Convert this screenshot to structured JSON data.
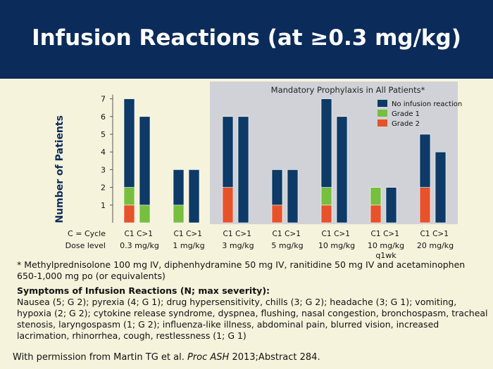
{
  "slide": {
    "title": "Infusion Reactions (at ≥0.3 mg/kg)",
    "footnote": "* Methylprednisolone 100 mg IV, diphenhydramine 50 mg IV, ranitidine 50 mg IV and acetaminophen 650-1,000 mg po (or equivalents)",
    "symptoms_title": "Symptoms of Infusion Reactions (N; max severity):",
    "symptoms_text": "Nausea (5; G 2); pyrexia (4; G 1); drug hypersensitivity, chills (3; G 2); headache (3; G 1); vomiting, hypoxia (2; G 2); cytokine release syndrome, dyspnea, flushing, nasal congestion, bronchospasm, tracheal stenosis, laryngospasm (1; G 2); influenza-like illness, abdominal pain, blurred vision, increased lacrimation, rhinorrhea, cough, restlessness (1; G 1)",
    "credit_prefix": "With permission from Martin TG et al. ",
    "credit_journal": "Proc ASH",
    "credit_suffix": " 2013;Abstract 284."
  },
  "chart_data": {
    "type": "bar",
    "stacked": true,
    "ylabel": "Number of Patients",
    "ylim": [
      0,
      7
    ],
    "yticks": [
      1,
      2,
      3,
      4,
      5,
      6,
      7
    ],
    "shaded_region_label": "Mandatory Prophylaxis in All Patients*",
    "row_labels": {
      "cycle": "C = Cycle",
      "dose": "Dose level"
    },
    "groups": [
      {
        "dose": "0.3 mg/kg",
        "cycles": [
          "C1",
          "C>1"
        ],
        "shaded": false
      },
      {
        "dose": "1 mg/kg",
        "cycles": [
          "C1",
          "C>1"
        ],
        "shaded": false
      },
      {
        "dose": "3 mg/kg",
        "cycles": [
          "C1",
          "C>1"
        ],
        "shaded": true
      },
      {
        "dose": "5 mg/kg",
        "cycles": [
          "C1",
          "C>1"
        ],
        "shaded": true
      },
      {
        "dose": "10 mg/kg",
        "cycles": [
          "C1",
          "C>1"
        ],
        "shaded": true
      },
      {
        "dose": "10 mg/kg\nq1wk",
        "cycles": [
          "C1",
          "C>1"
        ],
        "shaded": true
      },
      {
        "dose": "20 mg/kg",
        "cycles": [
          "C1",
          "C>1"
        ],
        "shaded": true
      }
    ],
    "series": [
      {
        "name": "Grade 2",
        "color": "#e8522a",
        "values": [
          1,
          0,
          0,
          0,
          2,
          0,
          1,
          0,
          1,
          0,
          1,
          0,
          2,
          0
        ]
      },
      {
        "name": "Grade 1",
        "color": "#77bf3e",
        "values": [
          1,
          1,
          1,
          0,
          0,
          0,
          0,
          0,
          1,
          0,
          1,
          0,
          0,
          0
        ]
      },
      {
        "name": "No infusion reaction",
        "color": "#0d3a66",
        "values": [
          5,
          5,
          2,
          3,
          4,
          6,
          2,
          3,
          5,
          6,
          0,
          2,
          3,
          4
        ]
      }
    ],
    "legend_order": [
      "No infusion reaction",
      "Grade 1",
      "Grade 2"
    ],
    "legend_position": "top-right"
  }
}
